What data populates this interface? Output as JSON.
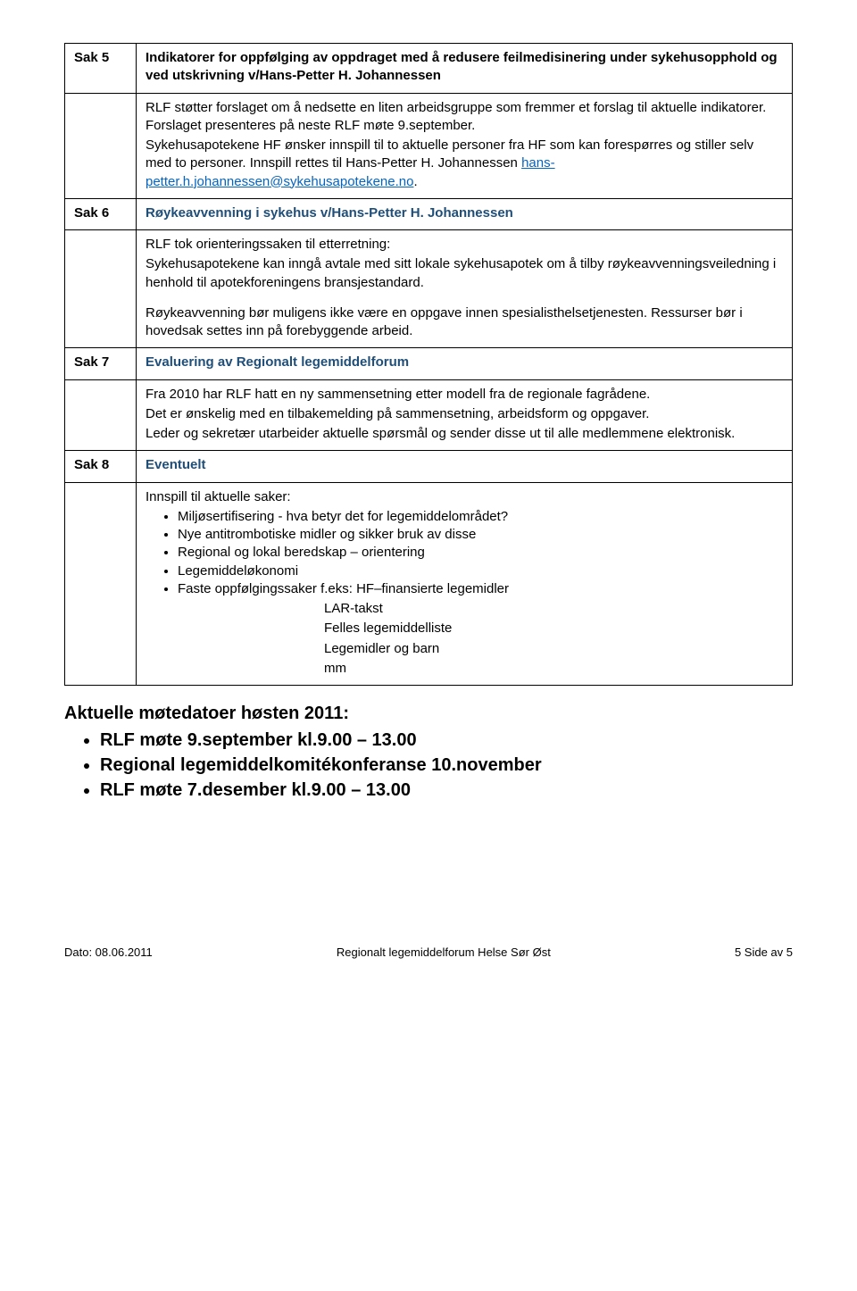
{
  "saks": {
    "sak5": {
      "label": "Sak 5",
      "heading": "Indikatorer for oppfølging av oppdraget med å redusere feilmedisinering under sykehusopphold og ved utskrivning v/Hans-Petter H. Johannessen",
      "body1": "RLF støtter forslaget om å nedsette en liten arbeidsgruppe som fremmer et forslag til aktuelle indikatorer. Forslaget presenteres på neste RLF møte 9.september.",
      "body2a": "Sykehusapotekene HF ønsker innspill til to aktuelle personer fra HF som kan forespørres og stiller selv med to personer. Innspill rettes til Hans-Petter H. Johannessen ",
      "body2_link": "hans-petter.h.johannessen@sykehusapotekene.no",
      "body2b": "."
    },
    "sak6": {
      "label": "Sak 6",
      "heading": "Røykeavvenning i sykehus v/Hans-Petter H. Johannessen",
      "body1": "RLF tok orienteringssaken til etterretning:",
      "body2": "Sykehusapotekene kan inngå avtale med sitt lokale sykehusapotek om å tilby røykeavvenningsveiledning i henhold til apotekforeningens bransjestandard.",
      "body3": "Røykeavvenning bør muligens ikke være en oppgave innen spesialisthelsetjenesten. Ressurser bør i hovedsak settes inn på forebyggende arbeid."
    },
    "sak7": {
      "label": "Sak 7",
      "heading": "Evaluering av Regionalt legemiddelforum",
      "body1": "Fra 2010 har RLF hatt en ny sammensetning etter modell fra de regionale fagrådene.",
      "body2": "Det er ønskelig med en tilbakemelding på sammensetning, arbeidsform og oppgaver.",
      "body3": "Leder og sekretær utarbeider aktuelle spørsmål og sender disse ut til alle medlemmene elektronisk."
    },
    "sak8": {
      "label": "Sak 8",
      "heading": "Eventuelt",
      "intro": "Innspill til aktuelle saker:",
      "items": [
        "Miljøsertifisering - hva betyr det for legemiddelområdet?",
        "Nye antitrombotiske midler og sikker bruk av disse",
        "Regional og lokal beredskap – orientering",
        "Legemiddeløkonomi",
        "Faste oppfølgingssaker f.eks: HF–finansierte legemidler"
      ],
      "sub": [
        "LAR-takst",
        "Felles legemiddelliste",
        "Legemidler og barn",
        "mm"
      ]
    }
  },
  "footer_dates": {
    "title": "Aktuelle møtedatoer høsten 2011:",
    "items": [
      "RLF møte 9.september kl.9.00 – 13.00",
      "Regional legemiddelkomitékonferanse 10.november",
      "RLF møte 7.desember kl.9.00 – 13.00"
    ]
  },
  "page_footer": {
    "left": "Dato: 08.06.2011",
    "center": "Regionalt legemiddelforum Helse Sør Øst",
    "right": "5   Side  av 5"
  }
}
